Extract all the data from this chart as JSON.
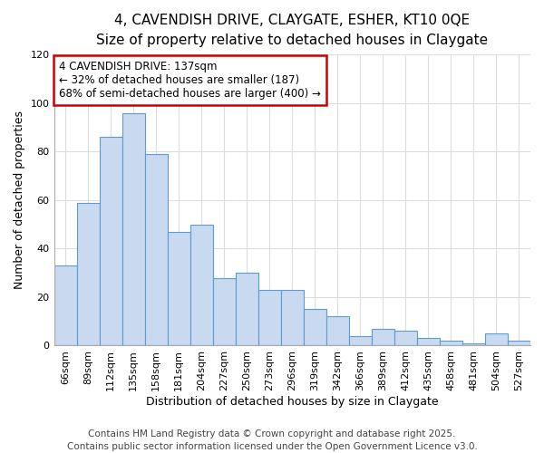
{
  "title_line1": "4, CAVENDISH DRIVE, CLAYGATE, ESHER, KT10 0QE",
  "title_line2": "Size of property relative to detached houses in Claygate",
  "xlabel": "Distribution of detached houses by size in Claygate",
  "ylabel": "Number of detached properties",
  "categories": [
    "66sqm",
    "89sqm",
    "112sqm",
    "135sqm",
    "158sqm",
    "181sqm",
    "204sqm",
    "227sqm",
    "250sqm",
    "273sqm",
    "296sqm",
    "319sqm",
    "342sqm",
    "366sqm",
    "389sqm",
    "412sqm",
    "435sqm",
    "458sqm",
    "481sqm",
    "504sqm",
    "527sqm"
  ],
  "values": [
    33,
    59,
    86,
    96,
    79,
    47,
    50,
    28,
    30,
    23,
    23,
    15,
    12,
    4,
    7,
    6,
    3,
    2,
    1,
    5,
    2
  ],
  "bar_color": "#c8d9f0",
  "bar_edgecolor": "#5b9bd5",
  "annotation_line1": "4 CAVENDISH DRIVE: 137sqm",
  "annotation_line2": "← 32% of detached houses are smaller (187)",
  "annotation_line3": "68% of semi-detached houses are larger (400) →",
  "annotation_box_facecolor": "#ffffff",
  "annotation_box_edgecolor": "#cc0000",
  "ylim": [
    0,
    120
  ],
  "yticks": [
    0,
    20,
    40,
    60,
    80,
    100,
    120
  ],
  "footer_line1": "Contains HM Land Registry data © Crown copyright and database right 2025.",
  "footer_line2": "Contains public sector information licensed under the Open Government Licence v3.0.",
  "bg_color": "#ffffff",
  "grid_color": "#dddddd",
  "title_fontsize": 11,
  "subtitle_fontsize": 10,
  "axis_label_fontsize": 9,
  "tick_fontsize": 8,
  "annotation_fontsize": 8.5,
  "footer_fontsize": 7.5
}
